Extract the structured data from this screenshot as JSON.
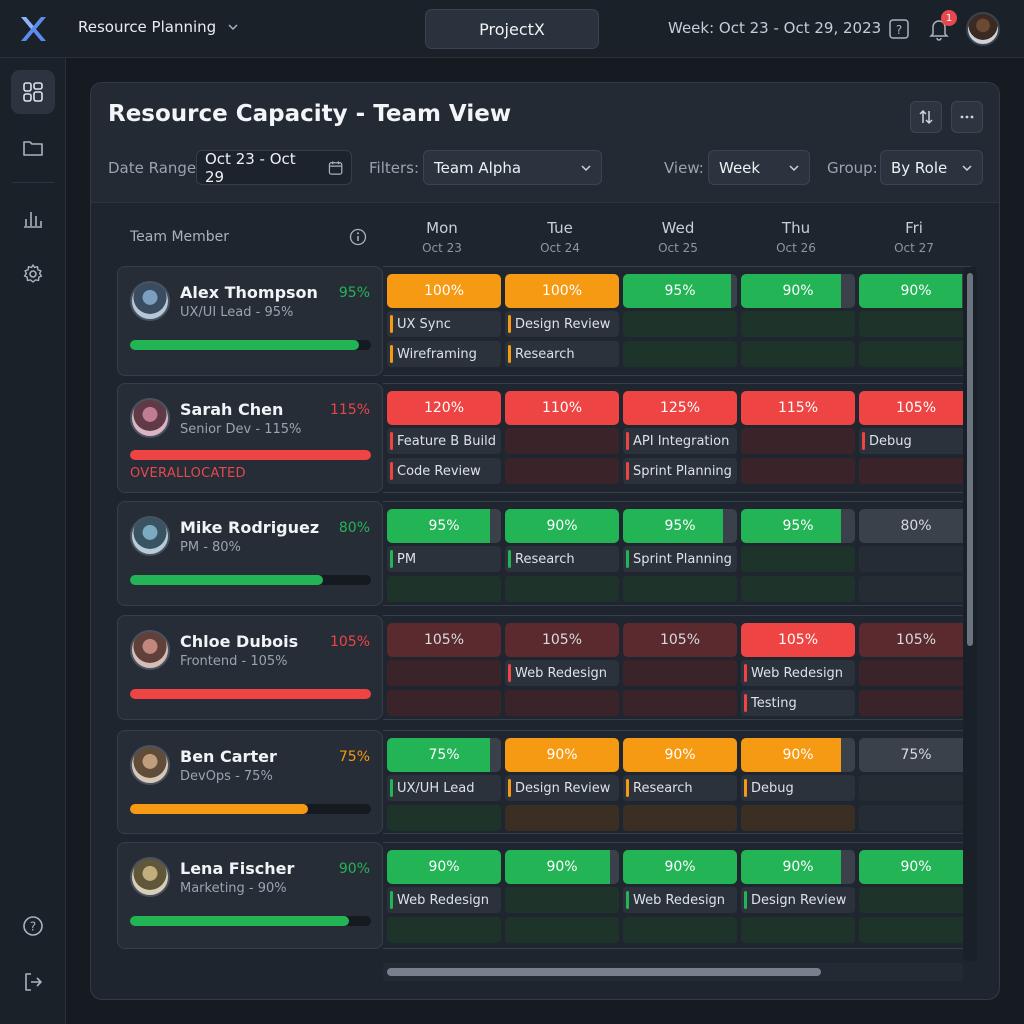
{
  "topbar": {
    "app_title": "Resource Planning",
    "project": "ProjectX",
    "week_label": "Week: Oct 23 - Oct 29, 2023",
    "notification_count": "1"
  },
  "sidebar": {
    "items": [
      {
        "name": "dashboard",
        "icon": "grid-icon",
        "active": true
      },
      {
        "name": "projects",
        "icon": "folder-icon",
        "active": false
      },
      {
        "name": "reports",
        "icon": "bar-chart-icon",
        "active": false
      },
      {
        "name": "settings",
        "icon": "gear-icon",
        "active": false
      }
    ],
    "bottom": [
      {
        "name": "help",
        "icon": "help-icon"
      },
      {
        "name": "logout",
        "icon": "logout-icon"
      }
    ]
  },
  "panel": {
    "title": "Resource Capacity - Team View",
    "date_range_label": "Date Range",
    "date_range_value": "Oct 23 - Oct 29",
    "filters_label": "Filters:",
    "filters_value": "Team Alpha",
    "view_label": "View:",
    "view_value": "Week",
    "group_label": "Group:",
    "group_value": "By Role"
  },
  "grid": {
    "member_header": "Team Member",
    "days": [
      {
        "day": "Mon",
        "date": "Oct 23"
      },
      {
        "day": "Tue",
        "date": "Oct 24"
      },
      {
        "day": "Wed",
        "date": "Oct 25"
      },
      {
        "day": "Thu",
        "date": "Oct 26"
      },
      {
        "day": "Fri",
        "date": "Oct 27"
      }
    ]
  },
  "colors": {
    "green": "#22b455",
    "orange": "#f59a12",
    "red": "#ef4444",
    "muted_red": "#5a2a2e",
    "gray": "#3a414b"
  },
  "members": [
    {
      "name": "Alex Thompson",
      "role": "UX/UI Lead - 95%",
      "pct": "95%",
      "status": "green",
      "load": 0.95,
      "flag": "",
      "days": [
        {
          "label": "100%",
          "style": "orange",
          "fill": 1,
          "tasks": [
            "UX Sync",
            "Wireframing"
          ],
          "marks": [
            "orange",
            "orange"
          ]
        },
        {
          "label": "100%",
          "style": "orange",
          "fill": 1,
          "tasks": [
            "Design Review",
            "Research"
          ],
          "marks": [
            "orange",
            "orange"
          ]
        },
        {
          "label": "95%",
          "style": "green",
          "fill": 0.95,
          "tasks": [],
          "marks": []
        },
        {
          "label": "90%",
          "style": "green",
          "fill": 0.88,
          "tasks": [],
          "marks": []
        },
        {
          "label": "90%",
          "style": "green",
          "fill": 0.9,
          "tasks": [],
          "marks": []
        }
      ]
    },
    {
      "name": "Sarah Chen",
      "role": "Senior Dev - 115%",
      "pct": "115%",
      "status": "red",
      "load": 1,
      "flag": "OVERALLOCATED",
      "days": [
        {
          "label": "120%",
          "style": "red",
          "fill": 1,
          "tasks": [
            "Feature B Build",
            "Code Review"
          ],
          "marks": [
            "red",
            "red"
          ]
        },
        {
          "label": "110%",
          "style": "red",
          "fill": 1,
          "tasks": [],
          "marks": []
        },
        {
          "label": "125%",
          "style": "red",
          "fill": 1,
          "tasks": [
            "API Integration",
            "Sprint Planning"
          ],
          "marks": [
            "red",
            "red"
          ]
        },
        {
          "label": "115%",
          "style": "red",
          "fill": 1,
          "tasks": [],
          "marks": []
        },
        {
          "label": "105%",
          "style": "red",
          "fill": 1,
          "tasks": [
            "Debug"
          ],
          "marks": [
            "red"
          ]
        }
      ]
    },
    {
      "name": "Mike Rodriguez",
      "role": "PM - 80%",
      "pct": "80%",
      "status": "green",
      "load": 0.8,
      "flag": "",
      "days": [
        {
          "label": "95%",
          "style": "green",
          "fill": 0.9,
          "tasks": [
            "PM"
          ],
          "marks": [
            "green"
          ]
        },
        {
          "label": "90%",
          "style": "green",
          "fill": 1,
          "tasks": [
            "Research"
          ],
          "marks": [
            "green"
          ]
        },
        {
          "label": "95%",
          "style": "green",
          "fill": 0.88,
          "tasks": [
            "Sprint Planning"
          ],
          "marks": [
            "green"
          ]
        },
        {
          "label": "95%",
          "style": "green",
          "fill": 0.88,
          "tasks": [],
          "marks": []
        },
        {
          "label": "80%",
          "style": "gray",
          "fill": 1,
          "tasks": [],
          "marks": []
        }
      ]
    },
    {
      "name": "Chloe Dubois",
      "role": "Frontend - 105%",
      "pct": "105%",
      "status": "red",
      "load": 1,
      "flag": "",
      "days": [
        {
          "label": "105%",
          "style": "muted",
          "fill": 1,
          "tasks": [],
          "marks": []
        },
        {
          "label": "105%",
          "style": "muted",
          "fill": 1,
          "tasks": [
            "Web Redesign"
          ],
          "marks": [
            "red"
          ]
        },
        {
          "label": "105%",
          "style": "muted",
          "fill": 1,
          "tasks": [],
          "marks": []
        },
        {
          "label": "105%",
          "style": "red",
          "fill": 1,
          "tasks": [
            "Web Redesign",
            "Testing"
          ],
          "marks": [
            "red",
            "red"
          ]
        },
        {
          "label": "105%",
          "style": "muted",
          "fill": 1,
          "tasks": [],
          "marks": []
        }
      ]
    },
    {
      "name": "Ben Carter",
      "role": "DevOps - 75%",
      "pct": "75%",
      "status": "orange",
      "load": 0.74,
      "flag": "",
      "days": [
        {
          "label": "75%",
          "style": "green",
          "fill": 0.9,
          "tasks": [
            "UX/UH Lead"
          ],
          "marks": [
            "green"
          ]
        },
        {
          "label": "90%",
          "style": "orange",
          "fill": 1,
          "tasks": [
            "Design Review"
          ],
          "marks": [
            "orange"
          ]
        },
        {
          "label": "90%",
          "style": "orange",
          "fill": 1,
          "tasks": [
            "Research"
          ],
          "marks": [
            "orange"
          ]
        },
        {
          "label": "90%",
          "style": "orange",
          "fill": 0.88,
          "tasks": [
            "Debug"
          ],
          "marks": [
            "orange"
          ]
        },
        {
          "label": "75%",
          "style": "gray",
          "fill": 1,
          "tasks": [],
          "marks": []
        }
      ]
    },
    {
      "name": "Lena Fischer",
      "role": "Marketing - 90%",
      "pct": "90%",
      "status": "green",
      "load": 0.91,
      "flag": "",
      "days": [
        {
          "label": "90%",
          "style": "green",
          "fill": 1,
          "tasks": [
            "Web Redesign"
          ],
          "marks": [
            "green"
          ]
        },
        {
          "label": "90%",
          "style": "green",
          "fill": 0.92,
          "tasks": [],
          "marks": []
        },
        {
          "label": "90%",
          "style": "green",
          "fill": 1,
          "tasks": [
            "Web Redesign"
          ],
          "marks": [
            "green"
          ]
        },
        {
          "label": "90%",
          "style": "green",
          "fill": 0.88,
          "tasks": [
            "Design Review"
          ],
          "marks": [
            "green"
          ]
        },
        {
          "label": "90%",
          "style": "green",
          "fill": 1,
          "tasks": [],
          "marks": []
        }
      ]
    }
  ]
}
